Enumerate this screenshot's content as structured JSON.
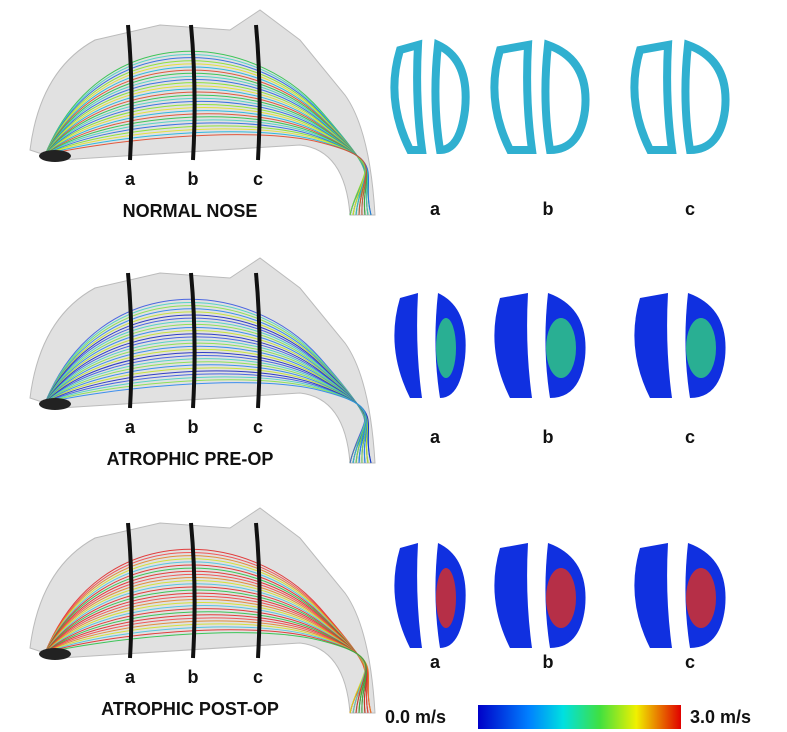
{
  "panels": [
    {
      "title": "NORMAL NOSE",
      "streamline_labels": [
        "a",
        "b",
        "c"
      ],
      "section_labels": [
        "a",
        "b",
        "c"
      ]
    },
    {
      "title": "ATROPHIC PRE-OP",
      "streamline_labels": [
        "a",
        "b",
        "c"
      ],
      "section_labels": [
        "a",
        "b",
        "c"
      ]
    },
    {
      "title": "ATROPHIC POST-OP",
      "streamline_labels": [
        "a",
        "b",
        "c"
      ],
      "section_labels": [
        "a",
        "b",
        "c"
      ]
    }
  ],
  "colorbar": {
    "min_label": "0.0 m/s",
    "max_label": "3.0 m/s"
  }
}
